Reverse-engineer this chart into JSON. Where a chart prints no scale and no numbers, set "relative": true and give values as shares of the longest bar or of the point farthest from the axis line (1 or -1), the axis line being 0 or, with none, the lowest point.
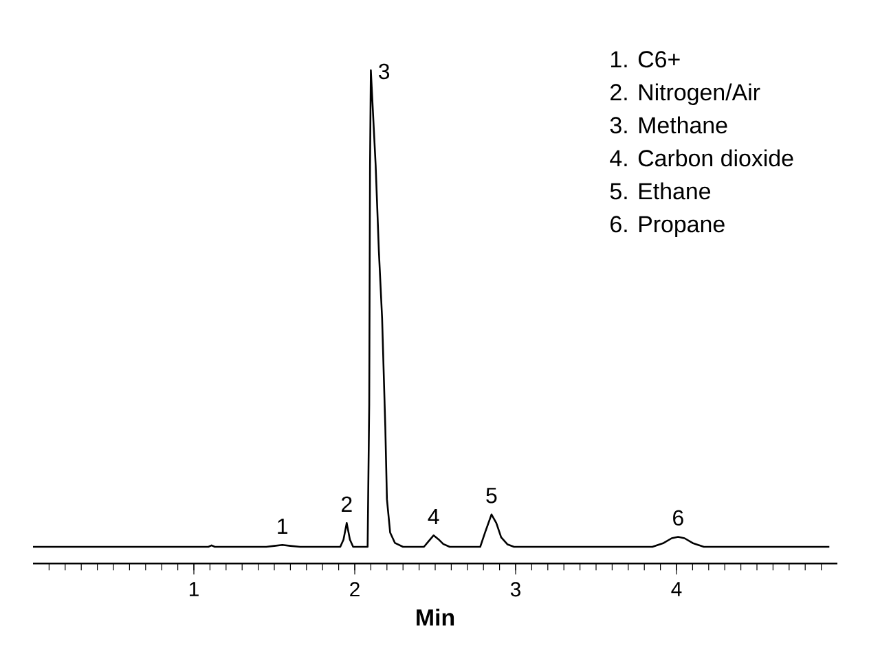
{
  "chart_data": {
    "type": "line",
    "relative": true,
    "xlabel": "Min",
    "xlim": [
      0,
      5
    ],
    "xticks": [
      1,
      2,
      3,
      4
    ],
    "tick_labels": "x",
    "grid": false,
    "marker": "none",
    "line_style": "solid",
    "series": [
      {
        "color": "#000000",
        "x": [
          0,
          1.09,
          1.11,
          1.13,
          1.45,
          1.5,
          1.55,
          1.6,
          1.66,
          1.91,
          1.93,
          1.95,
          1.97,
          1.99,
          2.08,
          2.09,
          2.095,
          2.1,
          2.13,
          2.15,
          2.17,
          2.19,
          2.2,
          2.22,
          2.25,
          2.3,
          2.43,
          2.46,
          2.49,
          2.52,
          2.55,
          2.59,
          2.78,
          2.81,
          2.85,
          2.88,
          2.91,
          2.95,
          2.99,
          3.85,
          3.92,
          3.97,
          4.01,
          4.05,
          4.1,
          4.17,
          4.95
        ],
        "values": [
          0,
          0,
          0.003,
          0,
          0,
          0.002,
          0.004,
          0.002,
          0,
          0,
          0.015,
          0.05,
          0.015,
          0,
          0,
          0.3,
          0.8,
          1,
          0.8,
          0.62,
          0.48,
          0.25,
          0.1,
          0.03,
          0.008,
          0,
          0,
          0.012,
          0.024,
          0.016,
          0.006,
          0,
          0,
          0.03,
          0.068,
          0.05,
          0.02,
          0.005,
          0,
          0,
          0.008,
          0.018,
          0.021,
          0.018,
          0.008,
          0,
          0
        ]
      }
    ],
    "annotations": [
      {
        "text": "1",
        "x": 1.55,
        "y": 0.004
      },
      {
        "text": "2",
        "x": 1.95,
        "y": 0.05
      },
      {
        "text": "3",
        "x": 2.1,
        "y": 1
      },
      {
        "text": "4",
        "x": 2.49,
        "y": 0.024
      },
      {
        "text": "5",
        "x": 2.85,
        "y": 0.068
      },
      {
        "text": "6",
        "x": 4.01,
        "y": 0.021
      },
      "1.  C6+",
      "2.  Nitrogen/Air",
      "3.  Methane",
      "4.  Carbon dioxide",
      "5.  Ethane",
      "6.  Propane"
    ]
  }
}
